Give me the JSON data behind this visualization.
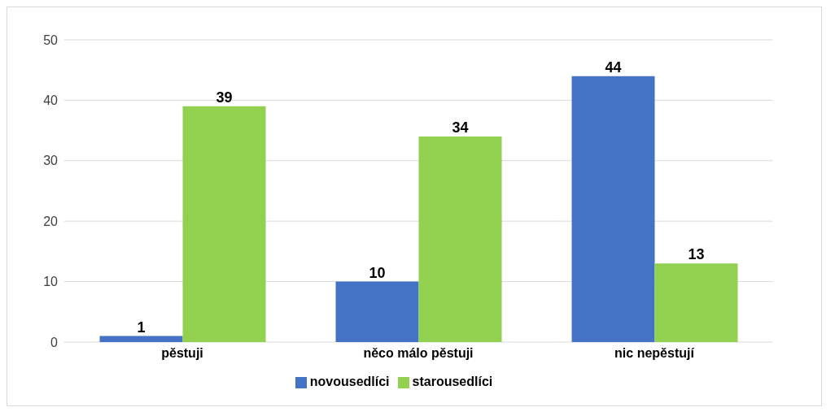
{
  "chart_data": {
    "type": "bar",
    "categories": [
      "pěstuji",
      "něco málo pěstuji",
      "nic nepěstují"
    ],
    "series": [
      {
        "name": "novousedlíci",
        "color": "#4472c4",
        "values": [
          1,
          10,
          44
        ]
      },
      {
        "name": "starousedlíci",
        "color": "#92d050",
        "values": [
          39,
          34,
          13
        ]
      }
    ],
    "ylim": [
      0,
      50
    ],
    "yticks": [
      0,
      10,
      20,
      30,
      40,
      50
    ],
    "grid": "y",
    "legend": "bottom",
    "data_labels": true
  }
}
